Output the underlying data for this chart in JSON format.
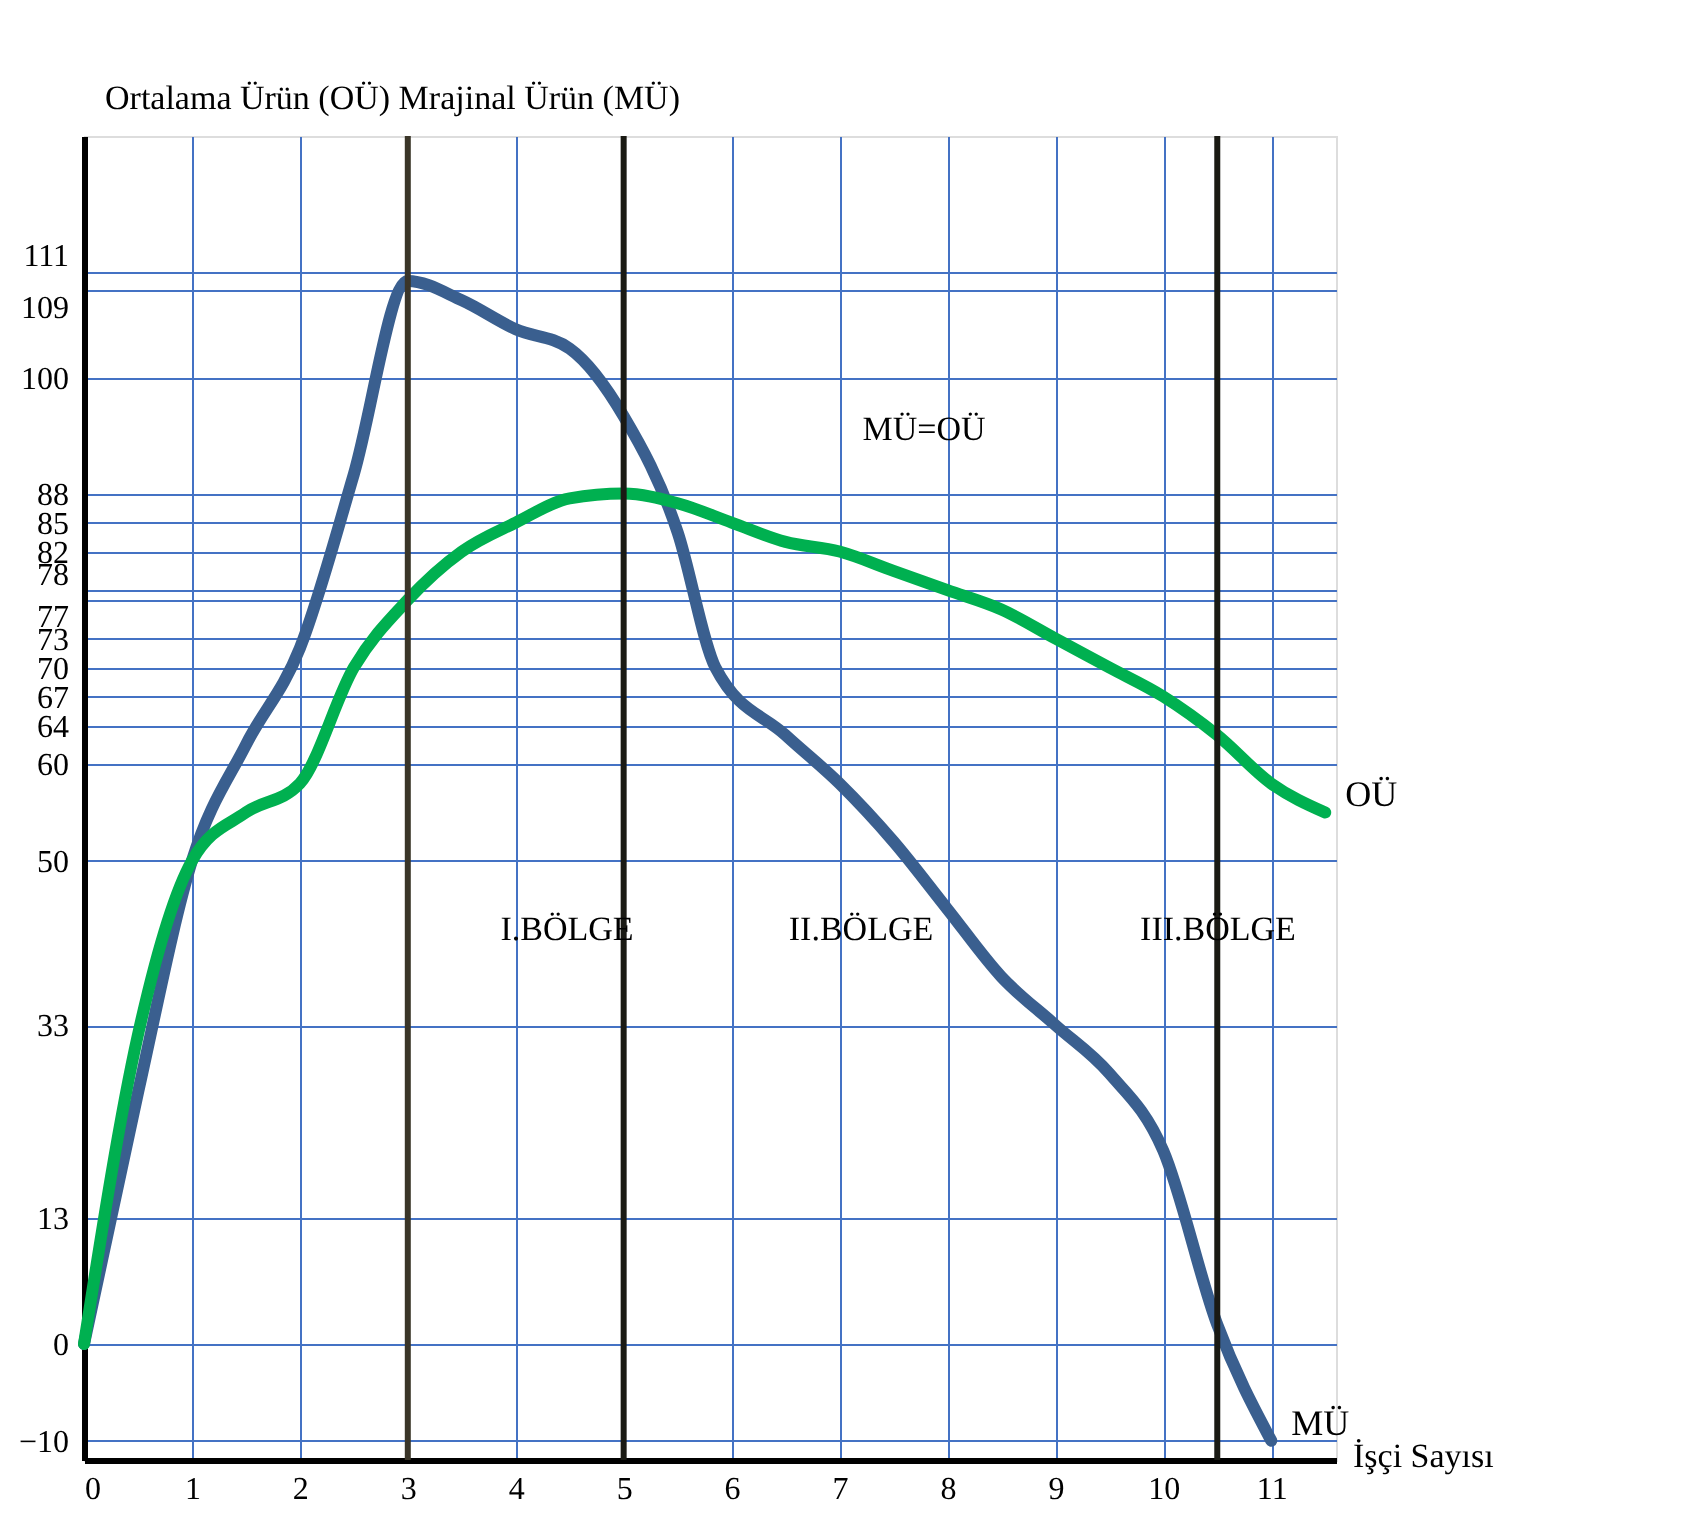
{
  "chart_data": {
    "type": "line",
    "ylabel": "Ortalama Ürün (OÜ) Mrajinal Ürün (MÜ)",
    "xlabel": "İşçi Sayısı",
    "xlim": [
      0,
      11.6
    ],
    "xticks": [
      0,
      1,
      2,
      3,
      4,
      5,
      6,
      7,
      8,
      9,
      10,
      11
    ],
    "ylim": [
      -12,
      125
    ],
    "yticks": [
      -10,
      0,
      13,
      33,
      50,
      60,
      64,
      67,
      70,
      73,
      77,
      78,
      82,
      85,
      88,
      100,
      109,
      111
    ],
    "grid": true,
    "legend": false,
    "line_style": "solid",
    "marker": "none",
    "series": [
      {
        "name": "MÜ",
        "color": "#3a5f8f",
        "x": [
          0,
          0.5,
          1,
          1.5,
          2,
          2.5,
          3,
          3.5,
          4,
          4.5,
          5,
          5.5,
          5.85,
          6.5,
          7,
          7.5,
          8,
          8.5,
          9,
          9.5,
          10,
          10.5,
          11
        ],
        "values": [
          0,
          26,
          50,
          62,
          72,
          90,
          110,
          108,
          105,
          103,
          96,
          84,
          70,
          63,
          58,
          52,
          45,
          38,
          33,
          28,
          20,
          2,
          -10
        ]
      },
      {
        "name": "OÜ",
        "color": "#00b050",
        "x": [
          0,
          0.5,
          1,
          1.5,
          2,
          2.5,
          3,
          3.5,
          4,
          4.5,
          5,
          5.5,
          6,
          6.5,
          7,
          7.5,
          8,
          8.5,
          9,
          9.5,
          10,
          10.5,
          11,
          11.5
        ],
        "values": [
          0,
          32,
          50,
          55,
          58,
          70,
          77,
          82,
          85,
          87.5,
          88,
          87,
          85,
          83,
          82,
          80,
          78,
          76,
          73,
          70,
          67,
          63,
          58,
          55
        ]
      }
    ],
    "ref_lines": [
      {
        "axis": "x",
        "value": 3,
        "color": "#3a3528"
      },
      {
        "axis": "x",
        "value": 5,
        "color": "#1a1a14"
      },
      {
        "axis": "x",
        "value": 10.5,
        "color": "#1a1a14"
      }
    ],
    "annotations": [
      "I.BÖLGE",
      "II.BÖLGE",
      "III.BÖLGE",
      "MÜ=OÜ"
    ]
  }
}
